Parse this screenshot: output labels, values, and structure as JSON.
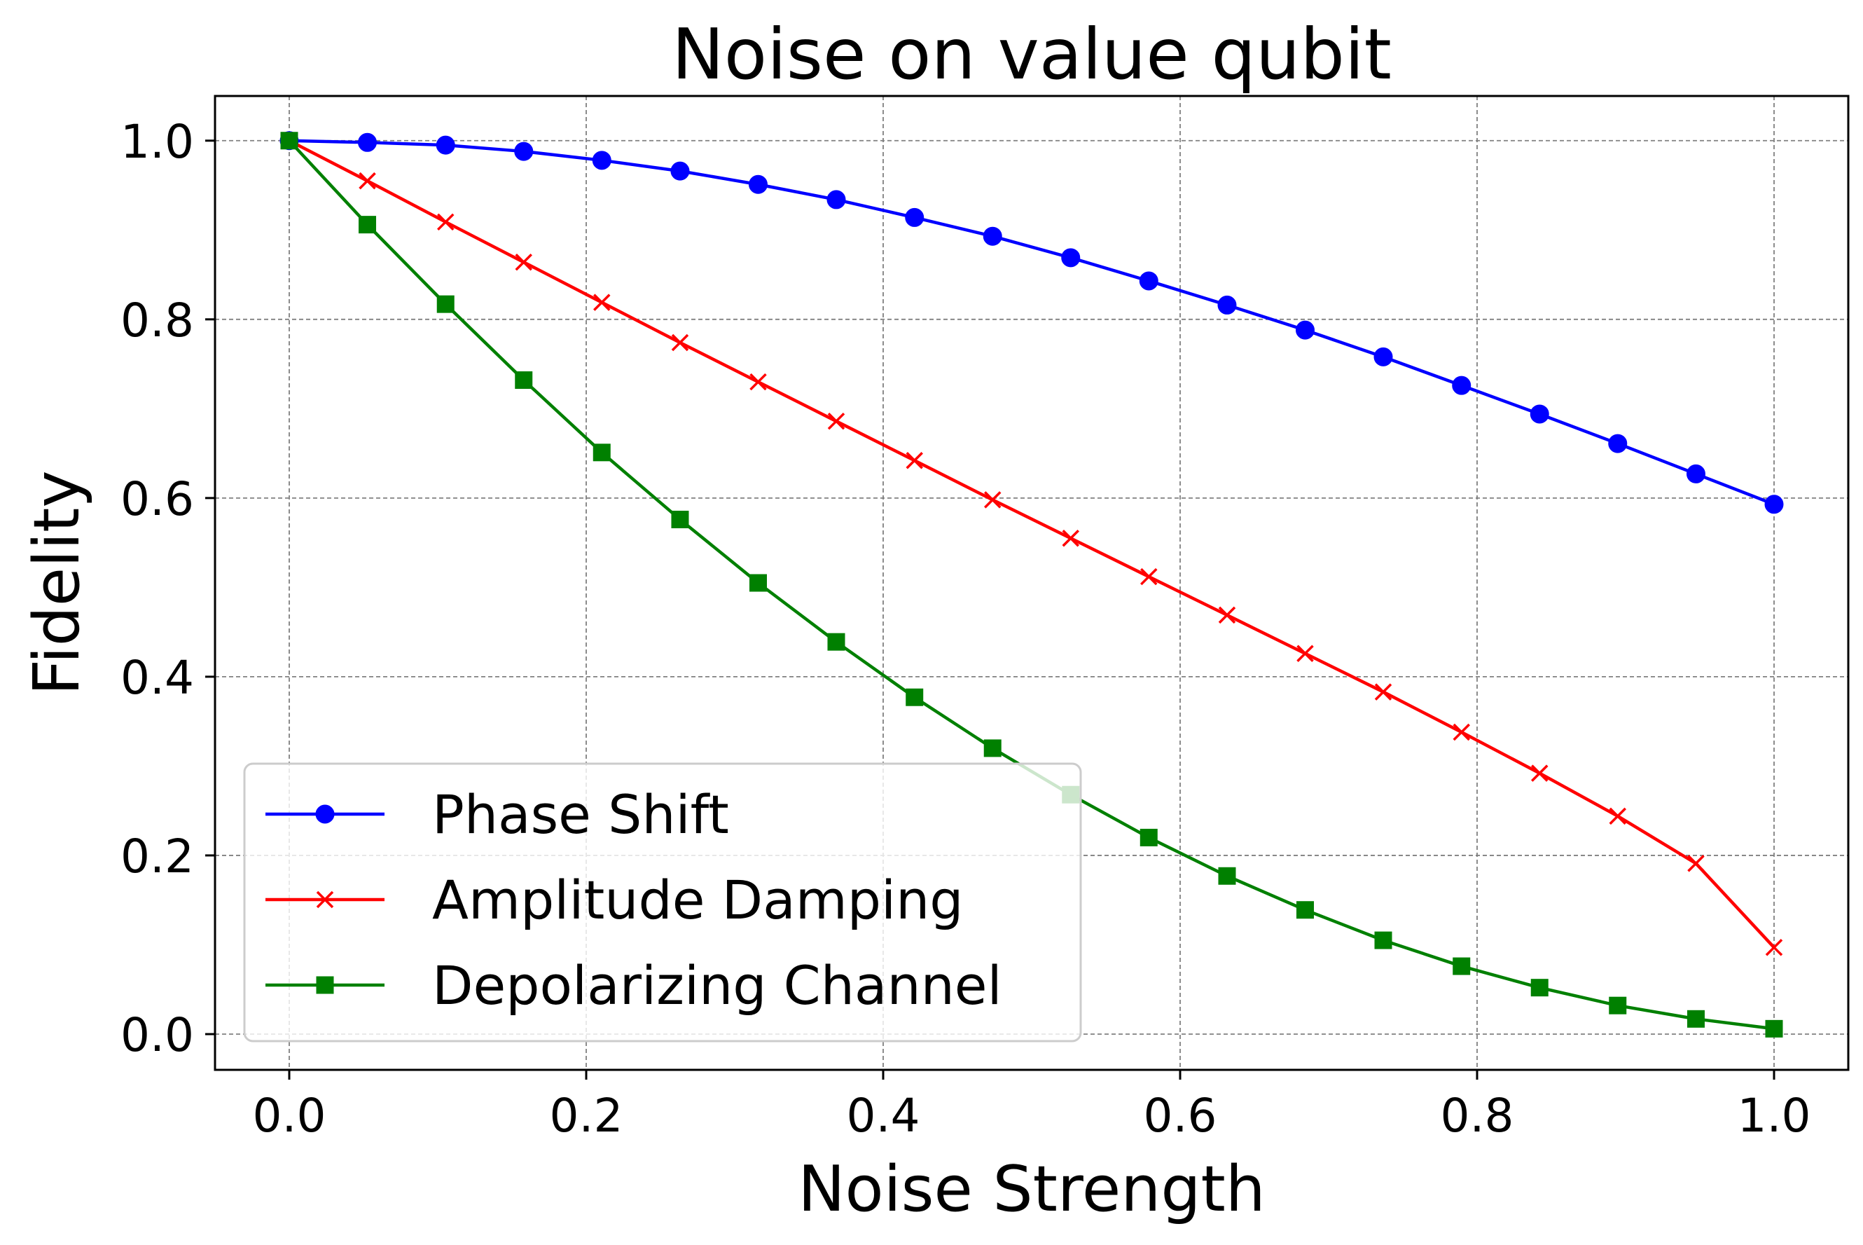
{
  "chart_data": {
    "type": "line",
    "title": "Noise on value qubit",
    "xlabel": "Noise Strength",
    "ylabel": "Fidelity",
    "xlim": [
      -0.05,
      1.05
    ],
    "ylim": [
      -0.04,
      1.05
    ],
    "xticks": [
      0.0,
      0.2,
      0.4,
      0.6,
      0.8,
      1.0
    ],
    "xtick_labels": [
      "0.0",
      "0.2",
      "0.4",
      "0.6",
      "0.8",
      "1.0"
    ],
    "yticks": [
      0.0,
      0.2,
      0.4,
      0.6,
      0.8,
      1.0
    ],
    "ytick_labels": [
      "0.0",
      "0.2",
      "0.4",
      "0.6",
      "0.8",
      "1.0"
    ],
    "grid": true,
    "legend_position": "lower-left",
    "x": [
      0.0,
      0.0526,
      0.1053,
      0.1579,
      0.2105,
      0.2632,
      0.3158,
      0.3684,
      0.4211,
      0.4737,
      0.5263,
      0.5789,
      0.6316,
      0.6842,
      0.7368,
      0.7895,
      0.8421,
      0.8947,
      0.9474,
      1.0
    ],
    "series": [
      {
        "name": "Phase Shift",
        "color": "#0000ff",
        "marker": "circle",
        "values": [
          1.0,
          0.998,
          0.995,
          0.988,
          0.978,
          0.966,
          0.951,
          0.934,
          0.914,
          0.893,
          0.869,
          0.843,
          0.816,
          0.788,
          0.758,
          0.726,
          0.694,
          0.661,
          0.627,
          0.593
        ]
      },
      {
        "name": "Amplitude Damping",
        "color": "#ff0000",
        "marker": "x",
        "values": [
          1.0,
          0.955,
          0.909,
          0.864,
          0.819,
          0.774,
          0.73,
          0.686,
          0.642,
          0.598,
          0.555,
          0.512,
          0.469,
          0.426,
          0.383,
          0.338,
          0.292,
          0.244,
          0.191,
          0.097
        ]
      },
      {
        "name": "Depolarizing Channel",
        "color": "#008000",
        "marker": "square",
        "values": [
          1.0,
          0.906,
          0.817,
          0.732,
          0.651,
          0.576,
          0.505,
          0.439,
          0.377,
          0.32,
          0.268,
          0.22,
          0.177,
          0.139,
          0.105,
          0.076,
          0.052,
          0.032,
          0.017,
          0.006
        ]
      }
    ]
  }
}
